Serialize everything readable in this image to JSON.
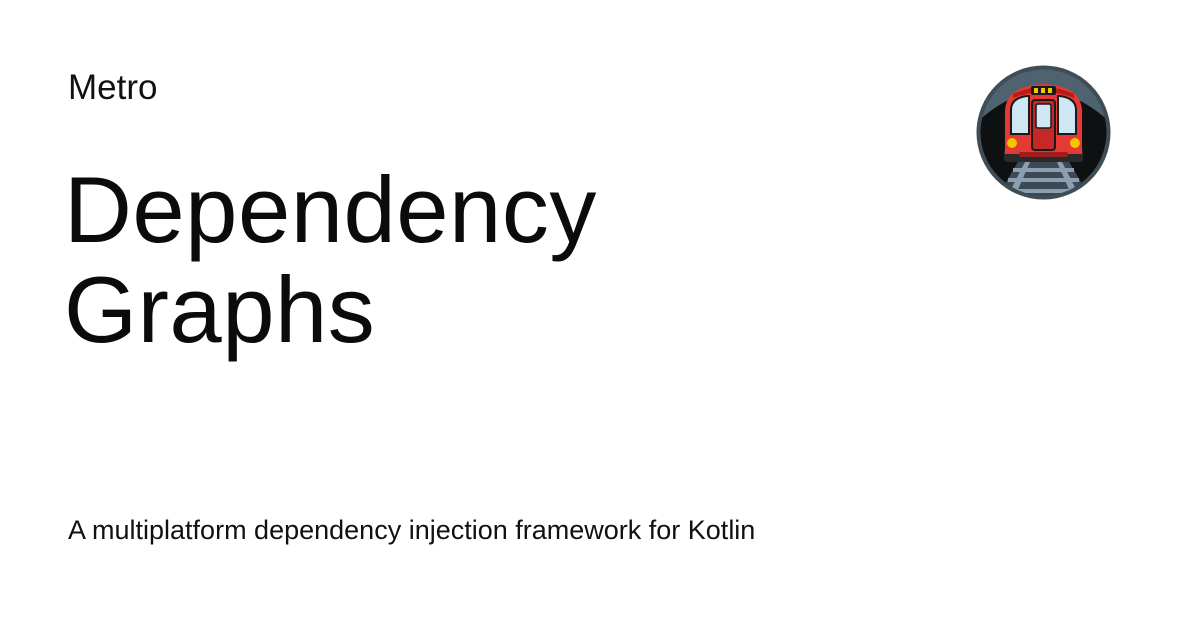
{
  "site": {
    "name": "Metro"
  },
  "page": {
    "title_lines": [
      "Dependency",
      "Graphs"
    ],
    "description": "A multiplatform dependency injection framework for Kotlin"
  },
  "logo": {
    "icon": "metro-train-icon",
    "colors": {
      "ring": "#4a5a66",
      "tunnel": "#0d0d0d",
      "body": "#e53935",
      "window": "#cfe6f5",
      "light": "#f6c400",
      "track": "#7d92a3"
    }
  }
}
